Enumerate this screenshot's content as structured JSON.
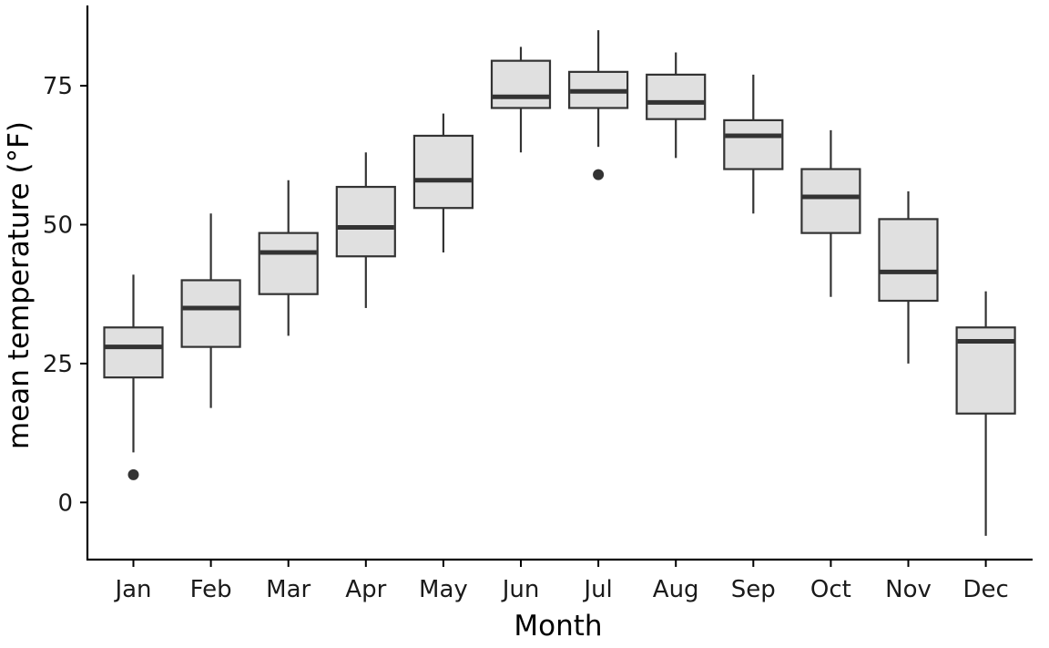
{
  "chart_data": {
    "type": "boxplot",
    "xlabel": "Month",
    "ylabel": "mean temperature (°F)",
    "ylim": [
      -10,
      90
    ],
    "yticks": [
      0,
      25,
      50,
      75
    ],
    "grid": false,
    "legend": "none",
    "colors": {
      "box_fill": "#e0e0e0",
      "box_stroke": "#333333"
    },
    "categories": [
      "Jan",
      "Feb",
      "Mar",
      "Apr",
      "May",
      "Jun",
      "Jul",
      "Aug",
      "Sep",
      "Oct",
      "Nov",
      "Dec"
    ],
    "boxes": [
      {
        "min": 9,
        "q1": 22.5,
        "median": 28,
        "q3": 31.5,
        "max": 41,
        "outliers": [
          5
        ]
      },
      {
        "min": 17,
        "q1": 28,
        "median": 35,
        "q3": 40,
        "max": 52,
        "outliers": []
      },
      {
        "min": 30,
        "q1": 37.5,
        "median": 45,
        "q3": 48.5,
        "max": 58,
        "outliers": []
      },
      {
        "min": 35,
        "q1": 44.3,
        "median": 49.5,
        "q3": 56.8,
        "max": 63,
        "outliers": []
      },
      {
        "min": 45,
        "q1": 53,
        "median": 58,
        "q3": 66,
        "max": 70,
        "outliers": []
      },
      {
        "min": 63,
        "q1": 71,
        "median": 73,
        "q3": 79.5,
        "max": 82,
        "outliers": []
      },
      {
        "min": 64,
        "q1": 71,
        "median": 74,
        "q3": 77.5,
        "max": 85,
        "outliers": [
          59
        ]
      },
      {
        "min": 62,
        "q1": 69,
        "median": 72,
        "q3": 77,
        "max": 81,
        "outliers": []
      },
      {
        "min": 52,
        "q1": 60,
        "median": 66,
        "q3": 68.8,
        "max": 77,
        "outliers": []
      },
      {
        "min": 37,
        "q1": 48.5,
        "median": 55,
        "q3": 60,
        "max": 67,
        "outliers": []
      },
      {
        "min": 25,
        "q1": 36.3,
        "median": 41.5,
        "q3": 51,
        "max": 56,
        "outliers": []
      },
      {
        "min": -6,
        "q1": 16,
        "median": 29,
        "q3": 31.5,
        "max": 38,
        "outliers": []
      }
    ]
  }
}
